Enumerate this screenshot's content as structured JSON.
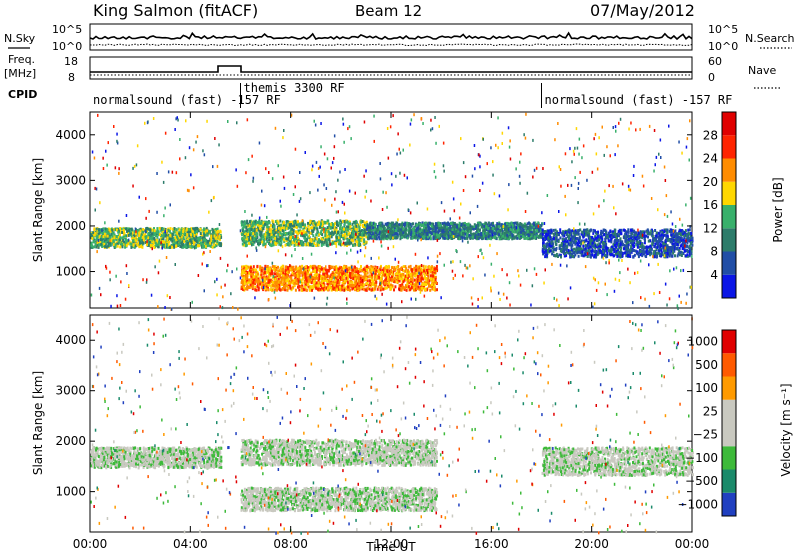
{
  "header": {
    "station": "King Salmon (fitACF)",
    "beam": "Beam 12",
    "date": "07/May/2012"
  },
  "top_panels": {
    "nsky_label": "N.Sky",
    "nsearch_label": "N.Search",
    "freq_label_1": "Freq.",
    "freq_label_2": "[MHz]",
    "nave_label": "Nave",
    "cpid_label": "CPID",
    "left_ticks_noise": [
      "10^5",
      "10^0"
    ],
    "right_ticks_noise": [
      "10^5",
      "10^0"
    ],
    "left_ticks_freq": [
      "18",
      "8"
    ],
    "right_ticks_nave": [
      "60",
      "0"
    ]
  },
  "cpid_segments": [
    {
      "label": "normalsound (fast) -157 RF",
      "start_hour": 0.0,
      "end_hour": 6.0
    },
    {
      "label": "themis 3300 RF",
      "start_hour": 6.0,
      "end_hour": 18.0
    },
    {
      "label": "normalsound (fast) -157 RF",
      "start_hour": 18.0,
      "end_hour": 24.0
    }
  ],
  "chart_data": [
    {
      "type": "heatmap",
      "panel": "power",
      "xlabel": "",
      "ylabel": "Slant Range [km]",
      "ylim": [
        200,
        4500
      ],
      "xlim_hours": [
        0,
        24
      ],
      "y_ticks": [
        "1000",
        "2000",
        "3000",
        "4000"
      ],
      "colorbar": {
        "label": "Power [dB]",
        "ticks": [
          "4",
          "8",
          "12",
          "16",
          "20",
          "24",
          "28"
        ],
        "colors": [
          "#0b16e6",
          "#214ea6",
          "#2d7c6a",
          "#38b06b",
          "#ffd700",
          "#ff8c00",
          "#ff2400",
          "#e00000"
        ]
      },
      "scatter_bands": [
        {
          "start_hour": 0.0,
          "end_hour": 5.2,
          "range_min": 1560,
          "range_max": 1980,
          "value_level": 3
        },
        {
          "start_hour": 6.0,
          "end_hour": 11.0,
          "range_min": 1600,
          "range_max": 2150,
          "value_level": 3
        },
        {
          "start_hour": 6.0,
          "end_hour": 13.8,
          "range_min": 620,
          "range_max": 1150,
          "value_level": 5
        },
        {
          "start_hour": 11.0,
          "end_hour": 18.0,
          "range_min": 1750,
          "range_max": 2100,
          "value_level": 2
        },
        {
          "start_hour": 18.0,
          "end_hour": 24.0,
          "range_min": 1350,
          "range_max": 1950,
          "value_level": 1
        }
      ]
    },
    {
      "type": "heatmap",
      "panel": "velocity",
      "xlabel": "Time UT",
      "ylabel": "Slant Range [km]",
      "ylim": [
        200,
        4500
      ],
      "xlim_hours": [
        0,
        24
      ],
      "y_ticks": [
        "1000",
        "2000",
        "3000",
        "4000"
      ],
      "x_ticks": [
        "00:00",
        "04:00",
        "08:00",
        "12:00",
        "16:00",
        "20:00",
        "00:00"
      ],
      "colorbar": {
        "label": "Velocity [m s⁻¹]",
        "ticks": [
          "1000",
          "500",
          "100",
          "25",
          "−25",
          "−100",
          "−500",
          "−1000"
        ],
        "colors": [
          "#2040c0",
          "#1a8a6a",
          "#3dba3a",
          "#c9c9c0",
          "#c9c9c0",
          "#ff9a00",
          "#ff5a00",
          "#e00000"
        ]
      },
      "scatter_bands": [
        {
          "start_hour": 0.0,
          "end_hour": 5.2,
          "range_min": 1500,
          "range_max": 1900,
          "value_level": 3
        },
        {
          "start_hour": 6.0,
          "end_hour": 13.8,
          "range_min": 1550,
          "range_max": 2050,
          "value_level": 3
        },
        {
          "start_hour": 6.0,
          "end_hour": 13.8,
          "range_min": 650,
          "range_max": 1100,
          "value_level": 3
        },
        {
          "start_hour": 18.0,
          "end_hour": 24.0,
          "range_min": 1350,
          "range_max": 1900,
          "value_level": 3
        }
      ]
    }
  ]
}
